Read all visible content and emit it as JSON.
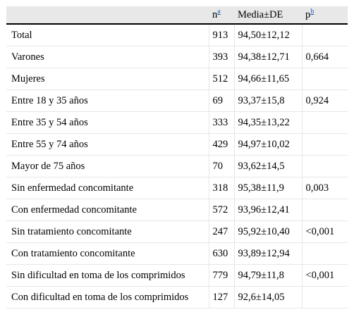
{
  "table": {
    "headers": {
      "label": "",
      "n": "n",
      "n_footnote": "a",
      "media": "Media±DE",
      "p": "p",
      "p_footnote": "b"
    },
    "rows": [
      {
        "label": "Total",
        "n": "913",
        "media": "94,50±12,12",
        "p": ""
      },
      {
        "label": "Varones",
        "n": "393",
        "media": "94,38±12,71",
        "p": "0,664"
      },
      {
        "label": "Mujeres",
        "n": "512",
        "media": "94,66±11,65",
        "p": ""
      },
      {
        "label": "Entre 18 y 35 años",
        "n": "69",
        "media": "93,37±15,8",
        "p": "0,924"
      },
      {
        "label": "Entre 35 y 54 años",
        "n": "333",
        "media": "94,35±13,22",
        "p": ""
      },
      {
        "label": "Entre 55 y 74 años",
        "n": "429",
        "media": "94,97±10,02",
        "p": ""
      },
      {
        "label": "Mayor de 75 años",
        "n": "70",
        "media": "93,62±14,5",
        "p": ""
      },
      {
        "label": "Sin enfermedad concomitante",
        "n": "318",
        "media": "95,38±11,9",
        "p": "0,003"
      },
      {
        "label": "Con enfermedad concomitante",
        "n": "572",
        "media": "93,96±12,41",
        "p": ""
      },
      {
        "label": "Sin tratamiento concomitante",
        "n": "247",
        "media": "95,92±10,40",
        "p": "<0,001"
      },
      {
        "label": "Con tratamiento concomitante",
        "n": "630",
        "media": "93,89±12,94",
        "p": ""
      },
      {
        "label": "Sin dificultad en toma de los comprimidos",
        "n": "779",
        "media": "94,79±11,8",
        "p": "<0,001"
      },
      {
        "label": "Con dificultad en toma de los comprimidos",
        "n": "127",
        "media": "92,6±14,05",
        "p": ""
      }
    ]
  }
}
